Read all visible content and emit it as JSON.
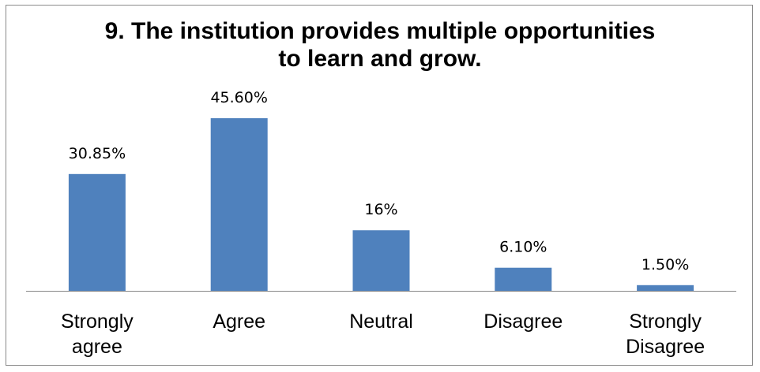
{
  "chart_data": {
    "type": "bar",
    "title_lines": [
      "9. The institution provides multiple opportunities",
      "to learn and grow."
    ],
    "categories": [
      [
        "Strongly",
        "agree"
      ],
      [
        "Agree"
      ],
      [
        "Neutral"
      ],
      [
        "Disagree"
      ],
      [
        "Strongly",
        "Disagree"
      ]
    ],
    "values": [
      30.85,
      45.6,
      16,
      6.1,
      1.5
    ],
    "data_labels": [
      "30.85%",
      "45.60%",
      "16%",
      "6.10%",
      "1.50%"
    ],
    "ylim": [
      0,
      50
    ],
    "grid": false,
    "legend": "none",
    "bar_color": "#4f81bd",
    "axis_color": "#868686"
  }
}
